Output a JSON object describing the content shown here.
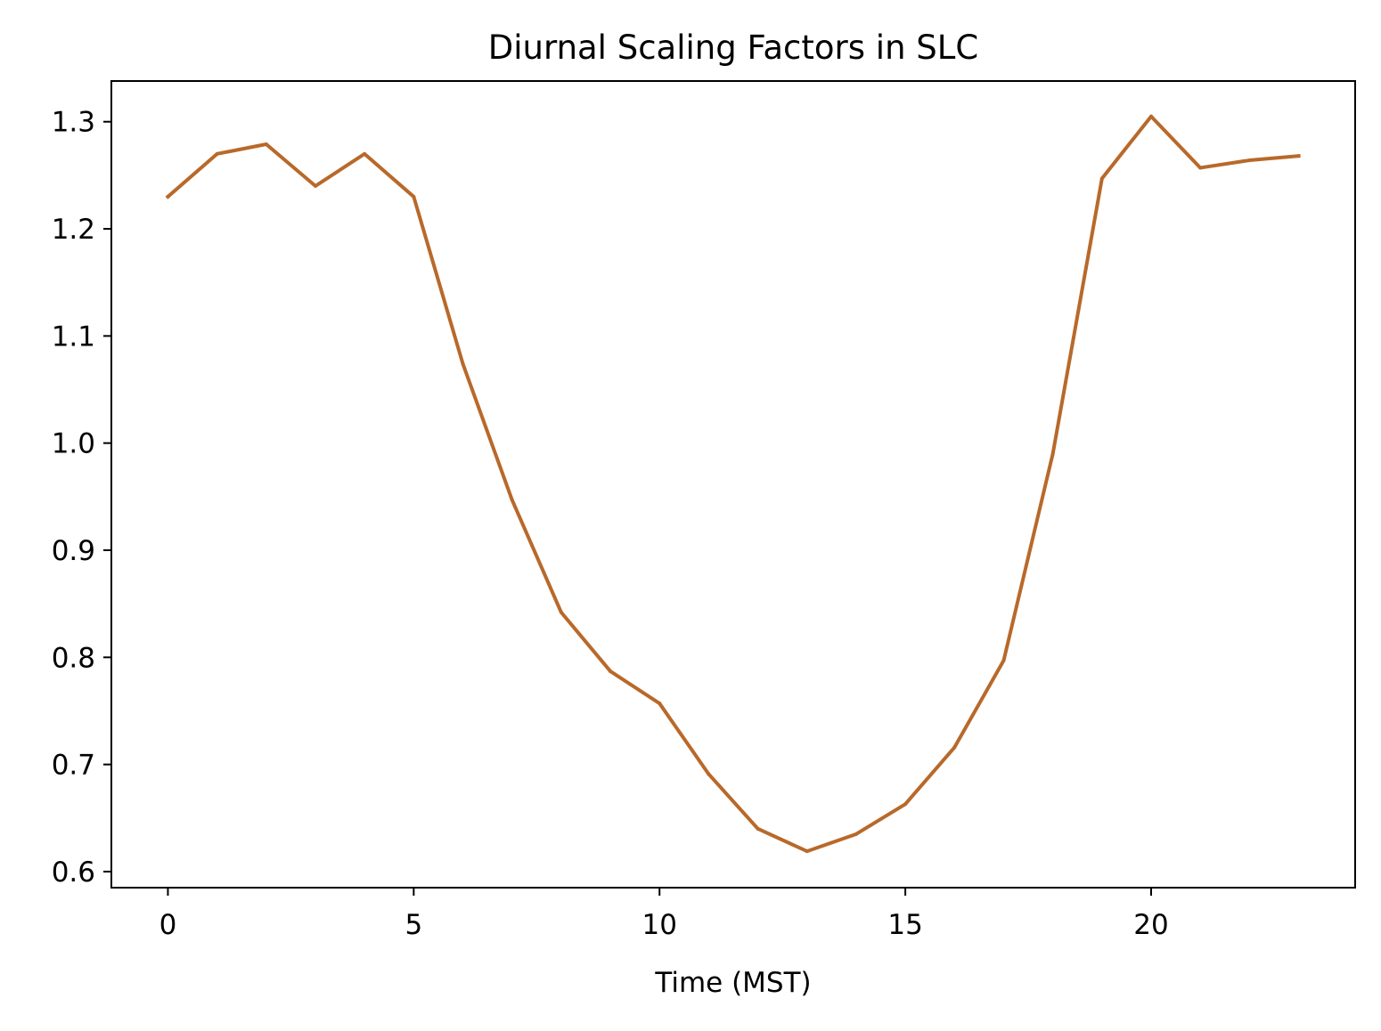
{
  "chart_data": {
    "type": "line",
    "title": "Diurnal Scaling Factors in SLC",
    "xlabel": "Time (MST)",
    "ylabel": "",
    "xlim": [
      -1.15,
      24.15
    ],
    "ylim": [
      0.585,
      1.338
    ],
    "xticks": [
      0,
      5,
      10,
      15,
      20
    ],
    "xtick_labels": [
      "0",
      "5",
      "10",
      "15",
      "20"
    ],
    "yticks": [
      0.6,
      0.7,
      0.8,
      0.9,
      1.0,
      1.1,
      1.2,
      1.3
    ],
    "ytick_labels": [
      "0.6",
      "0.7",
      "0.8",
      "0.9",
      "1.0",
      "1.1",
      "1.2",
      "1.3"
    ],
    "grid": false,
    "legend": "none",
    "series": [
      {
        "color": "#b8692a",
        "x": [
          0,
          1,
          2,
          3,
          4,
          5,
          6,
          7,
          8,
          9,
          10,
          11,
          12,
          13,
          14,
          15,
          16,
          17,
          18,
          19,
          20,
          21,
          22,
          23
        ],
        "y": [
          1.23,
          1.27,
          1.279,
          1.24,
          1.27,
          1.23,
          1.074,
          0.947,
          0.842,
          0.787,
          0.757,
          0.691,
          0.64,
          0.619,
          0.635,
          0.663,
          0.716,
          0.797,
          0.99,
          1.247,
          1.305,
          1.257,
          1.264,
          1.268
        ]
      }
    ]
  }
}
